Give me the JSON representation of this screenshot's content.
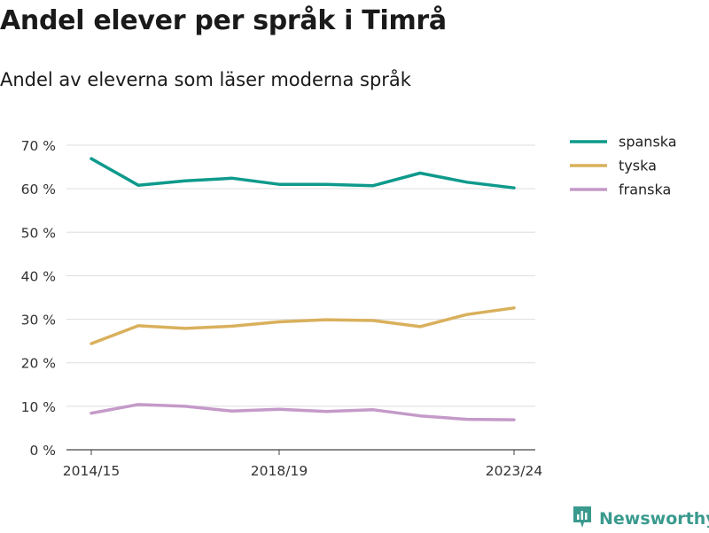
{
  "title": "Andel elever per språk i Timrå",
  "subtitle": "Andel av eleverna som läser moderna språk",
  "brand": {
    "name": "Newsworthy",
    "color": "#3a9a8e",
    "icon": "bar-chart-logo-icon"
  },
  "chart_data": {
    "type": "line",
    "title": "Andel elever per språk i Timrå",
    "subtitle": "Andel av eleverna som läser moderna språk",
    "x": [
      "2014/15",
      "2015/16",
      "2016/17",
      "2017/18",
      "2018/19",
      "2019/20",
      "2020/21",
      "2021/22",
      "2022/23",
      "2023/24"
    ],
    "x_tick_labels": [
      "2014/15",
      "2018/19",
      "2023/24"
    ],
    "x_tick_indices": [
      0,
      4,
      9
    ],
    "ylim": [
      0,
      70
    ],
    "y_ticks": [
      0,
      10,
      20,
      30,
      40,
      50,
      60,
      70
    ],
    "y_tick_labels": [
      "0 %",
      "10 %",
      "20 %",
      "30 %",
      "40 %",
      "50 %",
      "60 %",
      "70 %"
    ],
    "grid": true,
    "legend_position": "top-right",
    "series": [
      {
        "name": "spanska",
        "color": "#0e9a8c",
        "values": [
          66.9,
          60.8,
          61.8,
          62.4,
          61.0,
          61.0,
          60.7,
          63.6,
          61.5,
          60.2
        ]
      },
      {
        "name": "tyska",
        "color": "#d9b05c",
        "values": [
          24.4,
          28.5,
          27.9,
          28.4,
          29.4,
          29.9,
          29.7,
          28.3,
          31.1,
          32.6
        ]
      },
      {
        "name": "franska",
        "color": "#c49ac9",
        "values": [
          8.4,
          10.4,
          10.0,
          8.9,
          9.3,
          8.8,
          9.2,
          7.8,
          7.0,
          6.9
        ]
      }
    ]
  }
}
